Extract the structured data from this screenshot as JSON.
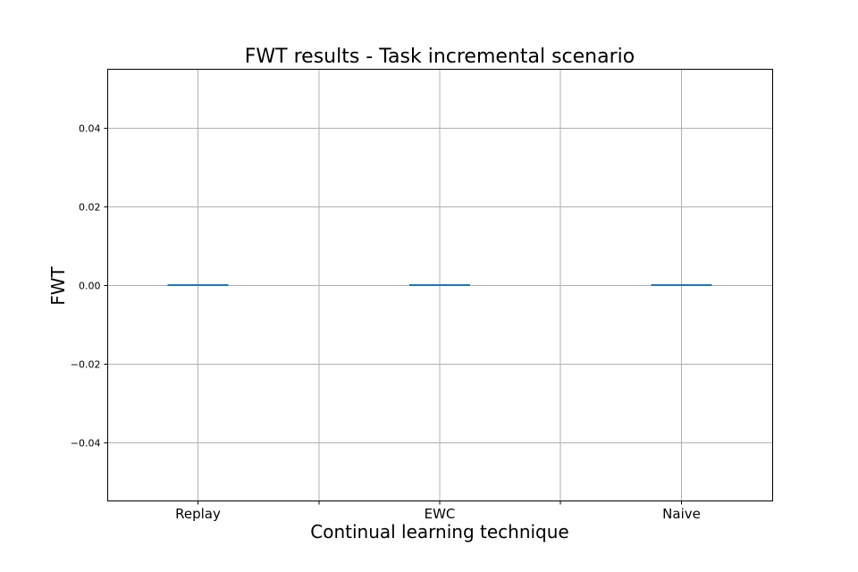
{
  "chart_data": {
    "type": "box",
    "title": "FWT results - Task incremental scenario",
    "xlabel": "Continual learning technique",
    "ylabel": "FWT",
    "categories": [
      "Replay",
      "EWC",
      "Naive"
    ],
    "values": [
      0.0,
      0.0,
      0.0
    ],
    "ylim": [
      -0.055,
      0.055
    ],
    "yticks": [
      0.04,
      0.02,
      0.0,
      -0.02,
      -0.04
    ],
    "ytick_labels": [
      "0.04",
      "0.02",
      "0.00",
      "−0.02",
      "−0.04"
    ],
    "grid": true,
    "series_color": "#1f77b4"
  }
}
